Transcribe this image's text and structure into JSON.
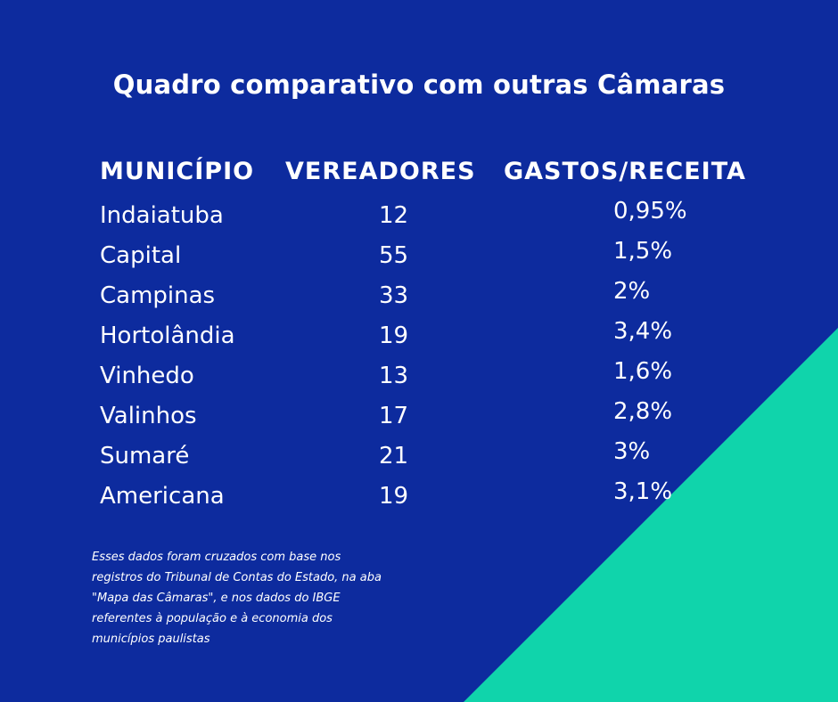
{
  "colors": {
    "background": "#0d2b9e",
    "accent": "#10d4ab",
    "text": "#ffffff"
  },
  "title": "Quadro comparativo com outras Câmaras",
  "chart_data": {
    "type": "table",
    "columns": [
      "MUNICÍPIO",
      "VEREADORES",
      "GASTOS/RECEITA"
    ],
    "rows": [
      {
        "municipio": "Indaiatuba",
        "vereadores": "12",
        "gastos_receita": "0,95%"
      },
      {
        "municipio": "Capital",
        "vereadores": "55",
        "gastos_receita": "1,5%"
      },
      {
        "municipio": "Campinas",
        "vereadores": "33",
        "gastos_receita": "2%"
      },
      {
        "municipio": "Hortolândia",
        "vereadores": "19",
        "gastos_receita": "3,4%"
      },
      {
        "municipio": "Vinhedo",
        "vereadores": "13",
        "gastos_receita": "1,6%"
      },
      {
        "municipio": "Valinhos",
        "vereadores": "17",
        "gastos_receita": "2,8%"
      },
      {
        "municipio": "Sumaré",
        "vereadores": "21",
        "gastos_receita": "3%"
      },
      {
        "municipio": "Americana",
        "vereadores": "19",
        "gastos_receita": "3,1%"
      }
    ]
  },
  "footnote": [
    "Esses dados foram cruzados com base nos",
    "registros do Tribunal de Contas do Estado, na aba",
    "\"Mapa das Câmaras\", e nos dados do IBGE",
    "referentes à população e à economia dos",
    "municípios paulistas"
  ]
}
